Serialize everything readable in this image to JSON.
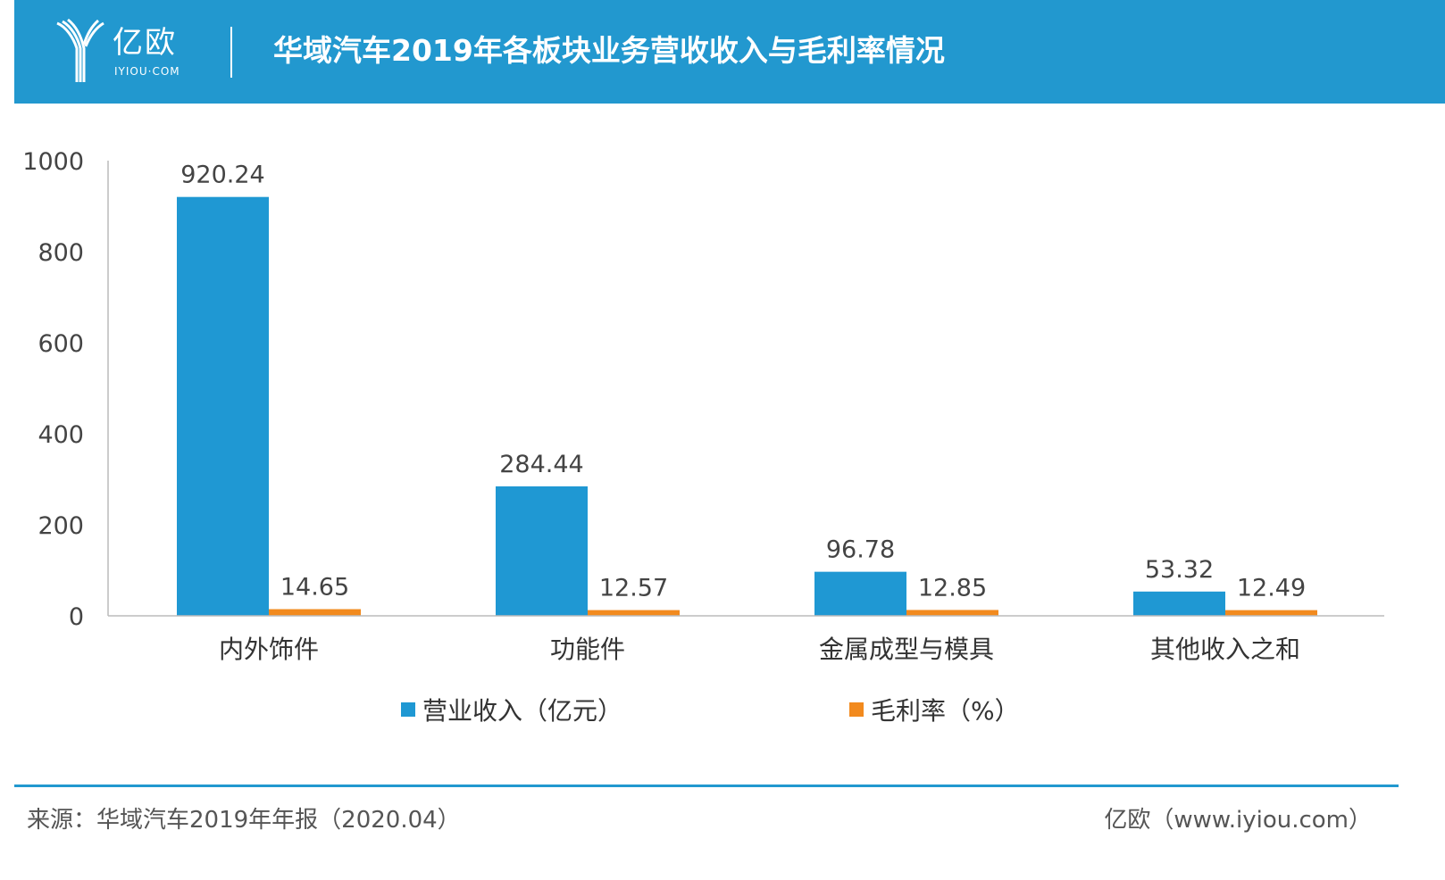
{
  "header": {
    "logo_text": "亿欧",
    "logo_sub": "IYIOU·COM",
    "title": "华域汽车2019年各板块业务营收收入与毛利率情况"
  },
  "colors": {
    "header_bg": "#2298cf",
    "revenue": "#1f98d3",
    "margin": "#f28a1e"
  },
  "chart_data": {
    "type": "bar",
    "categories": [
      "内外饰件",
      "功能件",
      "金属成型与模具",
      "其他收入之和"
    ],
    "series": [
      {
        "name": "营业收入（亿元）",
        "values": [
          920.24,
          284.44,
          96.78,
          53.32
        ],
        "labels": [
          "920.24",
          "284.44",
          "96.78",
          "53.32"
        ]
      },
      {
        "name": "毛利率（%）",
        "values": [
          14.65,
          12.57,
          12.85,
          12.49
        ],
        "labels": [
          "14.65",
          "12.57",
          "12.85",
          "12.49"
        ]
      }
    ],
    "ylim": [
      0,
      1000
    ],
    "yticks": [
      "0",
      "200",
      "400",
      "600",
      "800",
      "1000"
    ],
    "legend_position": "bottom"
  },
  "footer": {
    "source": "来源：华域汽车2019年年报（2020.04）",
    "site": "亿欧（www.iyiou.com）"
  }
}
